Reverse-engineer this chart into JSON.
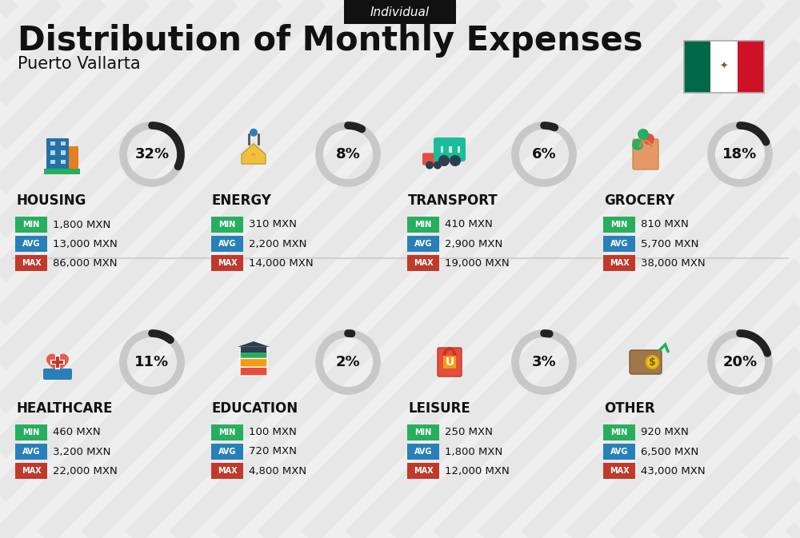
{
  "title": "Distribution of Monthly Expenses",
  "subtitle": "Puerto Vallarta",
  "tag": "Individual",
  "background_color": "#efefef",
  "stripe_color": "#e2e2e2",
  "categories": [
    {
      "name": "HOUSING",
      "percent": 32,
      "min": "1,800 MXN",
      "avg": "13,000 MXN",
      "max": "86,000 MXN",
      "row": 0,
      "col": 0
    },
    {
      "name": "ENERGY",
      "percent": 8,
      "min": "310 MXN",
      "avg": "2,200 MXN",
      "max": "14,000 MXN",
      "row": 0,
      "col": 1
    },
    {
      "name": "TRANSPORT",
      "percent": 6,
      "min": "410 MXN",
      "avg": "2,900 MXN",
      "max": "19,000 MXN",
      "row": 0,
      "col": 2
    },
    {
      "name": "GROCERY",
      "percent": 18,
      "min": "810 MXN",
      "avg": "5,700 MXN",
      "max": "38,000 MXN",
      "row": 0,
      "col": 3
    },
    {
      "name": "HEALTHCARE",
      "percent": 11,
      "min": "460 MXN",
      "avg": "3,200 MXN",
      "max": "22,000 MXN",
      "row": 1,
      "col": 0
    },
    {
      "name": "EDUCATION",
      "percent": 2,
      "min": "100 MXN",
      "avg": "720 MXN",
      "max": "4,800 MXN",
      "row": 1,
      "col": 1
    },
    {
      "name": "LEISURE",
      "percent": 3,
      "min": "250 MXN",
      "avg": "1,800 MXN",
      "max": "12,000 MXN",
      "row": 1,
      "col": 2
    },
    {
      "name": "OTHER",
      "percent": 20,
      "min": "920 MXN",
      "avg": "6,500 MXN",
      "max": "43,000 MXN",
      "row": 1,
      "col": 3
    }
  ],
  "min_color": "#27ae60",
  "avg_color": "#2980b9",
  "max_color": "#c0392b",
  "text_color": "#111111",
  "circle_bg_color": "#c8c8c8",
  "circle_fg_color": "#222222",
  "flag_green": "#006847",
  "flag_white": "#ffffff",
  "flag_red": "#ce1126",
  "tag_bg": "#111111",
  "tag_color": "#ffffff"
}
